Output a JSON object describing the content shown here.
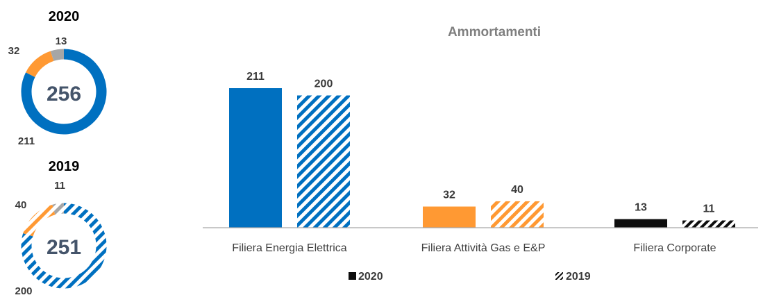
{
  "colors": {
    "energia": "#0070c0",
    "gas": "#ff9933",
    "corporate": "#0d0d0d",
    "donut_other": "#a6a6a6",
    "label_dark": "#3a3a3a",
    "center_text": "#44546a",
    "title_gray": "#7f7f7f"
  },
  "chart_data": [
    {
      "type": "pie",
      "title": "2020",
      "center_label": "256",
      "slices": [
        {
          "label": "211",
          "value": 211
        },
        {
          "label": "32",
          "value": 32
        },
        {
          "label": "13",
          "value": 13
        }
      ]
    },
    {
      "type": "pie",
      "title": "2019",
      "center_label": "251",
      "slices": [
        {
          "label": "200",
          "value": 200
        },
        {
          "label": "40",
          "value": 40
        },
        {
          "label": "11",
          "value": 11
        }
      ]
    },
    {
      "type": "bar",
      "title": "Ammortamenti",
      "categories": [
        "Filiera Energia Elettrica",
        "Filiera Attività Gas e E&P",
        "Filiera Corporate"
      ],
      "series": [
        {
          "name": "2020",
          "values": [
            211,
            32,
            13
          ]
        },
        {
          "name": "2019",
          "values": [
            200,
            40,
            11
          ]
        }
      ],
      "legend_position": "bottom",
      "grid": false
    }
  ]
}
